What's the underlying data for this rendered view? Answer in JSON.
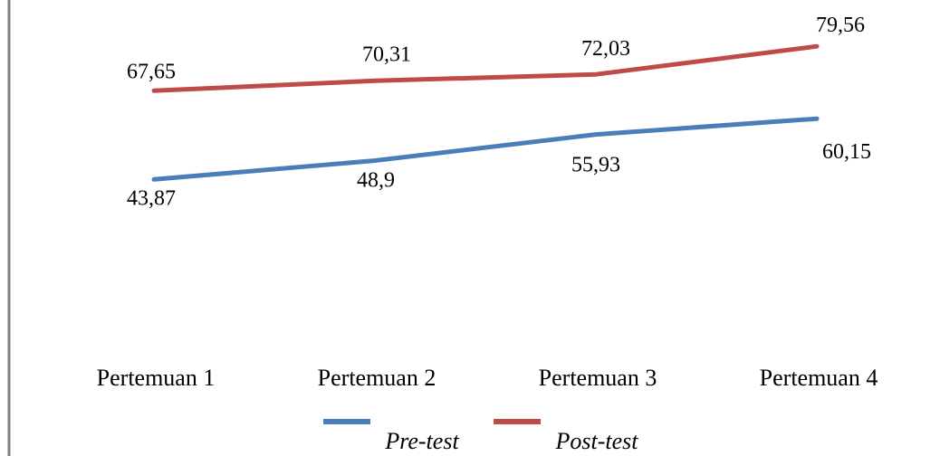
{
  "chart_data": {
    "type": "line",
    "categories": [
      "Pertemuan 1",
      "Pertemuan 2",
      "Pertemuan 3",
      "Pertemuan 4"
    ],
    "series": [
      {
        "name": "Pre-test",
        "values": [
          43.87,
          48.9,
          55.93,
          60.15
        ],
        "labels": [
          "43,87",
          "48,9",
          "55,93",
          "60,15"
        ],
        "color": "#4a7ebb"
      },
      {
        "name": "Post-test",
        "values": [
          67.65,
          70.31,
          72.03,
          79.56
        ],
        "labels": [
          "67,65",
          "70,31",
          "72,03",
          "79,56"
        ],
        "color": "#be4b48"
      }
    ],
    "title": "",
    "xlabel": "",
    "ylabel": "",
    "grid": false,
    "legend_position": "bottom",
    "frame_color": "#808080"
  }
}
